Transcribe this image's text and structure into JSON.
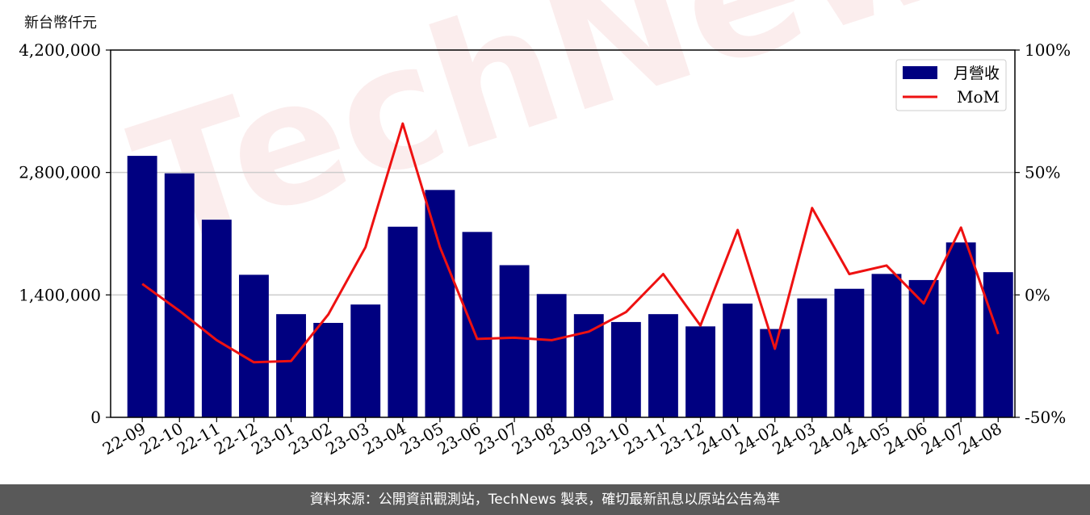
{
  "unit_label": "新台幣仟元",
  "watermark": "TechNews",
  "footer": "資料來源：公開資訊觀測站，TechNews 製表，確切最新訊息以原站公告為準",
  "colors": {
    "bar": "#000080",
    "line": "#ee1111",
    "grid": "#cccccc"
  },
  "chart_data": {
    "type": "bar",
    "categories": [
      "22-09",
      "22-10",
      "22-11",
      "22-12",
      "23-01",
      "23-02",
      "23-03",
      "23-04",
      "23-05",
      "23-06",
      "23-07",
      "23-08",
      "23-09",
      "23-10",
      "23-11",
      "23-12",
      "24-01",
      "24-02",
      "24-03",
      "24-04",
      "24-05",
      "24-06",
      "24-07",
      "24-08"
    ],
    "series": [
      {
        "name": "月營收",
        "axis": "left",
        "type": "bar",
        "values": [
          2990000,
          2790000,
          2260000,
          1630000,
          1180000,
          1080000,
          1290000,
          2180000,
          2600000,
          2120000,
          1740000,
          1410000,
          1180000,
          1090000,
          1180000,
          1040000,
          1300000,
          1010000,
          1360000,
          1470000,
          1640000,
          1570000,
          2000000,
          1660000
        ]
      },
      {
        "name": "MoM",
        "axis": "right",
        "type": "line",
        "values": [
          4.5,
          -6.5,
          -18.5,
          -27.5,
          -27,
          -8,
          19.5,
          70,
          19.5,
          -18,
          -17.5,
          -18.5,
          -15,
          -7,
          8.5,
          -12.5,
          26.5,
          -22,
          35.5,
          8.5,
          12,
          -3.5,
          27.5,
          -16
        ]
      }
    ],
    "ylim_left": [
      0,
      4200000
    ],
    "yticks_left": [
      0,
      1400000,
      2800000,
      4200000
    ],
    "ytick_labels_left": [
      "0",
      "1,400,000",
      "2,800,000",
      "4,200,000"
    ],
    "ylim_right": [
      -50,
      100
    ],
    "yticks_right": [
      -50,
      0,
      50,
      100
    ],
    "ytick_labels_right": [
      "-50%",
      "0%",
      "50%",
      "100%"
    ],
    "grid": true,
    "legend": "top-right"
  }
}
